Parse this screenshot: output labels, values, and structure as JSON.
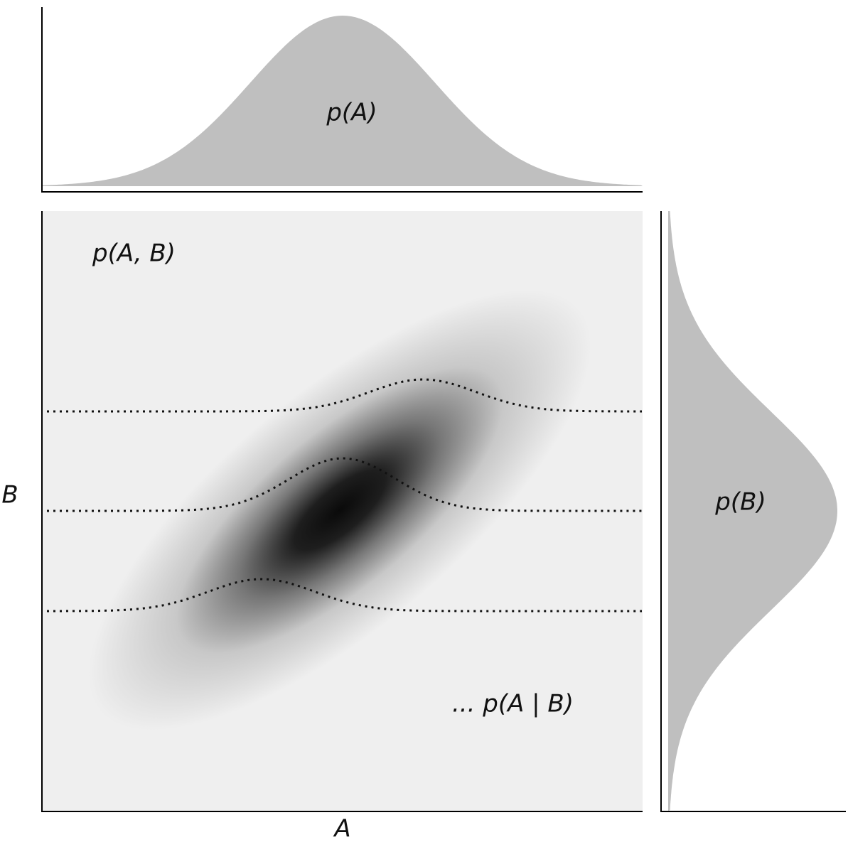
{
  "labels": {
    "marginal_a": "p(A)",
    "joint": "p(A, B)",
    "marginal_b": "p(B)",
    "conditional": "... p(A | B)",
    "x_axis": "A",
    "y_axis": "B"
  }
}
